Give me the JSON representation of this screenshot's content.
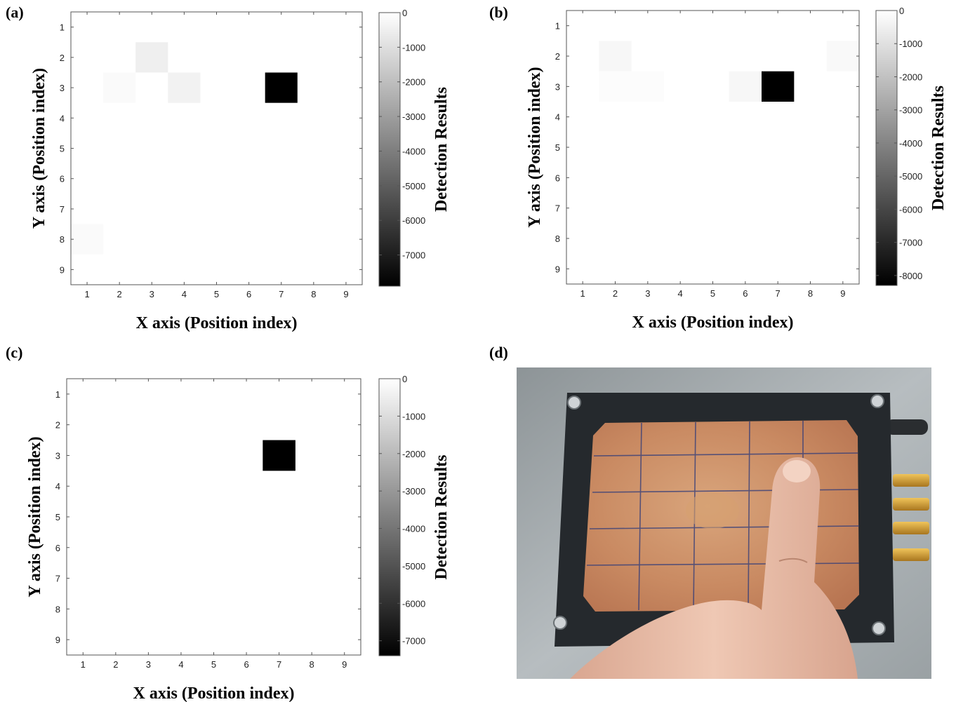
{
  "panels": [
    {
      "label": "(a)"
    },
    {
      "label": "(b)"
    },
    {
      "label": "(c)"
    },
    {
      "label": "(d)"
    }
  ],
  "chart_data": [
    {
      "type": "heatmap",
      "panel": "(a)",
      "xlabel": "X axis (Position index)",
      "ylabel": "Y axis (Position index)",
      "x": [
        1,
        2,
        3,
        4,
        5,
        6,
        7,
        8,
        9
      ],
      "y": [
        1,
        2,
        3,
        4,
        5,
        6,
        7,
        8,
        9
      ],
      "xlim": [
        0.5,
        9.5
      ],
      "ylim": [
        0.5,
        9.5
      ],
      "y_direction": "top-to-bottom",
      "colormap": "gray",
      "background_value": 0,
      "cells": [
        {
          "x": 3,
          "y": 2,
          "value": -500
        },
        {
          "x": 2,
          "y": 3,
          "value": -150
        },
        {
          "x": 4,
          "y": 3,
          "value": -400
        },
        {
          "x": 7,
          "y": 3,
          "value": -7900
        },
        {
          "x": 1,
          "y": 8,
          "value": -150
        }
      ],
      "colorbar": {
        "label": "Detection Results",
        "min": -7900,
        "max": 0,
        "ticks": [
          0,
          -1000,
          -2000,
          -3000,
          -4000,
          -5000,
          -6000,
          -7000
        ]
      }
    },
    {
      "type": "heatmap",
      "panel": "(b)",
      "xlabel": "X axis (Position index)",
      "ylabel": "Y axis (Position index)",
      "x": [
        1,
        2,
        3,
        4,
        5,
        6,
        7,
        8,
        9
      ],
      "y": [
        1,
        2,
        3,
        4,
        5,
        6,
        7,
        8,
        9
      ],
      "xlim": [
        0.5,
        9.5
      ],
      "ylim": [
        0.5,
        9.5
      ],
      "y_direction": "top-to-bottom",
      "colormap": "gray",
      "background_value": 0,
      "cells": [
        {
          "x": 2,
          "y": 2,
          "value": -250
        },
        {
          "x": 9,
          "y": 2,
          "value": -200
        },
        {
          "x": 2,
          "y": 3,
          "value": -100
        },
        {
          "x": 3,
          "y": 3,
          "value": -100
        },
        {
          "x": 6,
          "y": 3,
          "value": -250
        },
        {
          "x": 7,
          "y": 3,
          "value": -8300
        }
      ],
      "colorbar": {
        "label": "Detection Results",
        "min": -8300,
        "max": 0,
        "ticks": [
          0,
          -1000,
          -2000,
          -3000,
          -4000,
          -5000,
          -6000,
          -7000,
          -8000
        ]
      }
    },
    {
      "type": "heatmap",
      "panel": "(c)",
      "xlabel": "X axis (Position index)",
      "ylabel": "Y axis (Position index)",
      "x": [
        1,
        2,
        3,
        4,
        5,
        6,
        7,
        8,
        9
      ],
      "y": [
        1,
        2,
        3,
        4,
        5,
        6,
        7,
        8,
        9
      ],
      "xlim": [
        0.5,
        9.5
      ],
      "ylim": [
        0.5,
        9.5
      ],
      "y_direction": "top-to-bottom",
      "colormap": "gray",
      "background_value": 0,
      "cells": [
        {
          "x": 7,
          "y": 3,
          "value": -7400
        }
      ],
      "colorbar": {
        "label": "Detection Results",
        "min": -7400,
        "max": 0,
        "ticks": [
          0,
          -1000,
          -2000,
          -3000,
          -4000,
          -5000,
          -6000,
          -7000
        ]
      }
    }
  ],
  "photo": {
    "subject": "finger touching a copper sensor plate in a black frame",
    "colors": {
      "frame": "#23272b",
      "copper": "#c98a62",
      "grid_line": "#2e3a7a",
      "table": "#a9b0b4",
      "skin": "#e6b8a2",
      "connector": "#d6a23a"
    }
  }
}
